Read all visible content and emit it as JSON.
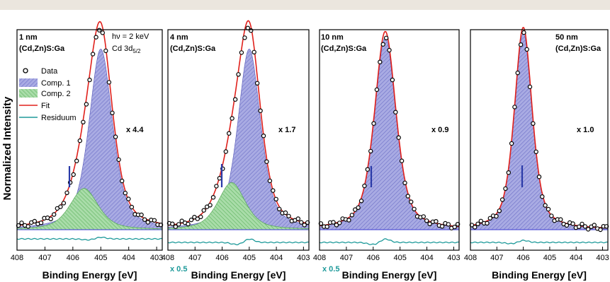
{
  "figure": {
    "ylabel": "Normalized Intensity",
    "xlabel": "Binding Energy [eV]"
  },
  "legend": {
    "entries": [
      {
        "label": "Data",
        "kind": "marker"
      },
      {
        "label": "Comp. 1",
        "kind": "patch",
        "color": "#8c8fd6"
      },
      {
        "label": "Comp. 2",
        "kind": "patch",
        "color": "#8fd08f"
      },
      {
        "label": "Fit",
        "kind": "line",
        "color": "#e0201b"
      },
      {
        "label": "Residuum",
        "kind": "line",
        "color": "#1e9a9a"
      }
    ]
  },
  "colors": {
    "comp1": "#8c8fd6",
    "comp2": "#8fd08f",
    "fit": "#e0201b",
    "residuum": "#1e9a9a",
    "marker_bar": "#2a3aa8",
    "baseline": "#3a3ad0"
  },
  "chart_data": [
    {
      "type": "line",
      "title": "1 nm",
      "subtitle": "(Cd,Zn)S:Ga",
      "annotation": "hν = 2 keV",
      "annotation2": "Cd 3d",
      "scale_label": "x 4.4",
      "residuum_scale": "",
      "xlabel": "Binding Energy [eV]",
      "xlim": [
        408,
        402.8
      ],
      "xticks": [
        408,
        407,
        406,
        405,
        404,
        403
      ],
      "ylim": [
        0,
        1
      ],
      "series": [
        {
          "name": "Comp. 1",
          "type": "voigt",
          "center": 405.0,
          "fwhm": 1.0,
          "amplitude": 0.92
        },
        {
          "name": "Comp. 2",
          "type": "voigt",
          "center": 405.6,
          "fwhm": 1.2,
          "amplitude": 0.21
        },
        {
          "name": "Fit",
          "sum": [
            "Comp. 1",
            "Comp. 2"
          ]
        }
      ],
      "marker_energy": 406.0,
      "has_components": true
    },
    {
      "type": "line",
      "title": "4 nm",
      "subtitle": "(Cd,Zn)S:Ga",
      "annotation": "",
      "annotation2": "",
      "scale_label": "x 1.7",
      "residuum_scale": "x 0.5",
      "xlabel": "Binding Energy [eV]",
      "xlim": [
        408,
        402.8
      ],
      "xticks": [
        408,
        407,
        406,
        405,
        404,
        403
      ],
      "ylim": [
        0,
        1
      ],
      "series": [
        {
          "name": "Comp. 1",
          "type": "voigt",
          "center": 405.0,
          "fwhm": 1.0,
          "amplitude": 0.92
        },
        {
          "name": "Comp. 2",
          "type": "voigt",
          "center": 405.65,
          "fwhm": 1.2,
          "amplitude": 0.24
        },
        {
          "name": "Fit",
          "sum": [
            "Comp. 1",
            "Comp. 2"
          ]
        }
      ],
      "marker_energy": 406.0,
      "has_components": true
    },
    {
      "type": "line",
      "title": "10 nm",
      "subtitle": "(Cd,Zn)S:Ga",
      "annotation": "",
      "annotation2": "",
      "scale_label": "x 0.9",
      "residuum_scale": "x 0.5",
      "xlabel": "Binding Energy [eV]",
      "xlim": [
        408,
        402.8
      ],
      "xticks": [
        408,
        407,
        406,
        405,
        404,
        403
      ],
      "ylim": [
        0,
        1
      ],
      "series": [
        {
          "name": "Comp. 1",
          "type": "voigt",
          "center": 405.55,
          "fwhm": 0.95,
          "amplitude": 0.98
        }
      ],
      "marker_energy": 406.0,
      "has_components": false
    },
    {
      "type": "line",
      "title": "50 nm",
      "subtitle": "(Cd,Zn)S:Ga",
      "annotation": "",
      "annotation2": "",
      "scale_label": "x 1.0",
      "residuum_scale": "",
      "xlabel": "Binding Energy [eV]",
      "xlim": [
        408,
        402.8
      ],
      "xticks": [
        408,
        407,
        406,
        405,
        404,
        403
      ],
      "ylim": [
        0,
        1
      ],
      "series": [
        {
          "name": "Comp. 1",
          "type": "voigt",
          "center": 406.0,
          "fwhm": 0.8,
          "amplitude": 1.0
        }
      ],
      "marker_energy": 406.0,
      "has_components": false
    }
  ]
}
